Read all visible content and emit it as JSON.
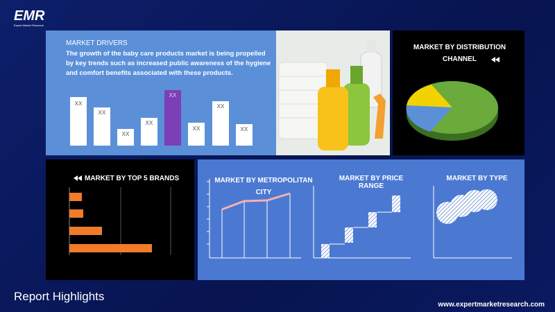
{
  "header": {
    "logo": "EMR",
    "logo_sub": "Expert Market Research"
  },
  "drivers": {
    "title": "MARKET DRIVERS",
    "text": "The growth of the baby care products market is being propelled by key trends such as increased public awareness of the hygiene and comfort benefits associated with these products.",
    "bar_labels": [
      "XX",
      "XX",
      "XX",
      "XX",
      "XX",
      "XX",
      "XX",
      "XX"
    ]
  },
  "distribution": {
    "title": "MARKET BY DISTRIBUTION CHANNEL"
  },
  "brands": {
    "title": "MARKET BY TOP 5 BRANDS"
  },
  "metro": {
    "title": "MARKET BY METROPOLITAN CITY"
  },
  "price": {
    "title": "MARKET BY PRICE RANGE"
  },
  "type": {
    "title": "MARKET BY TYPE"
  },
  "footer": {
    "title": "Report Highlights",
    "url": "www.expertmarketresearch.com"
  }
}
